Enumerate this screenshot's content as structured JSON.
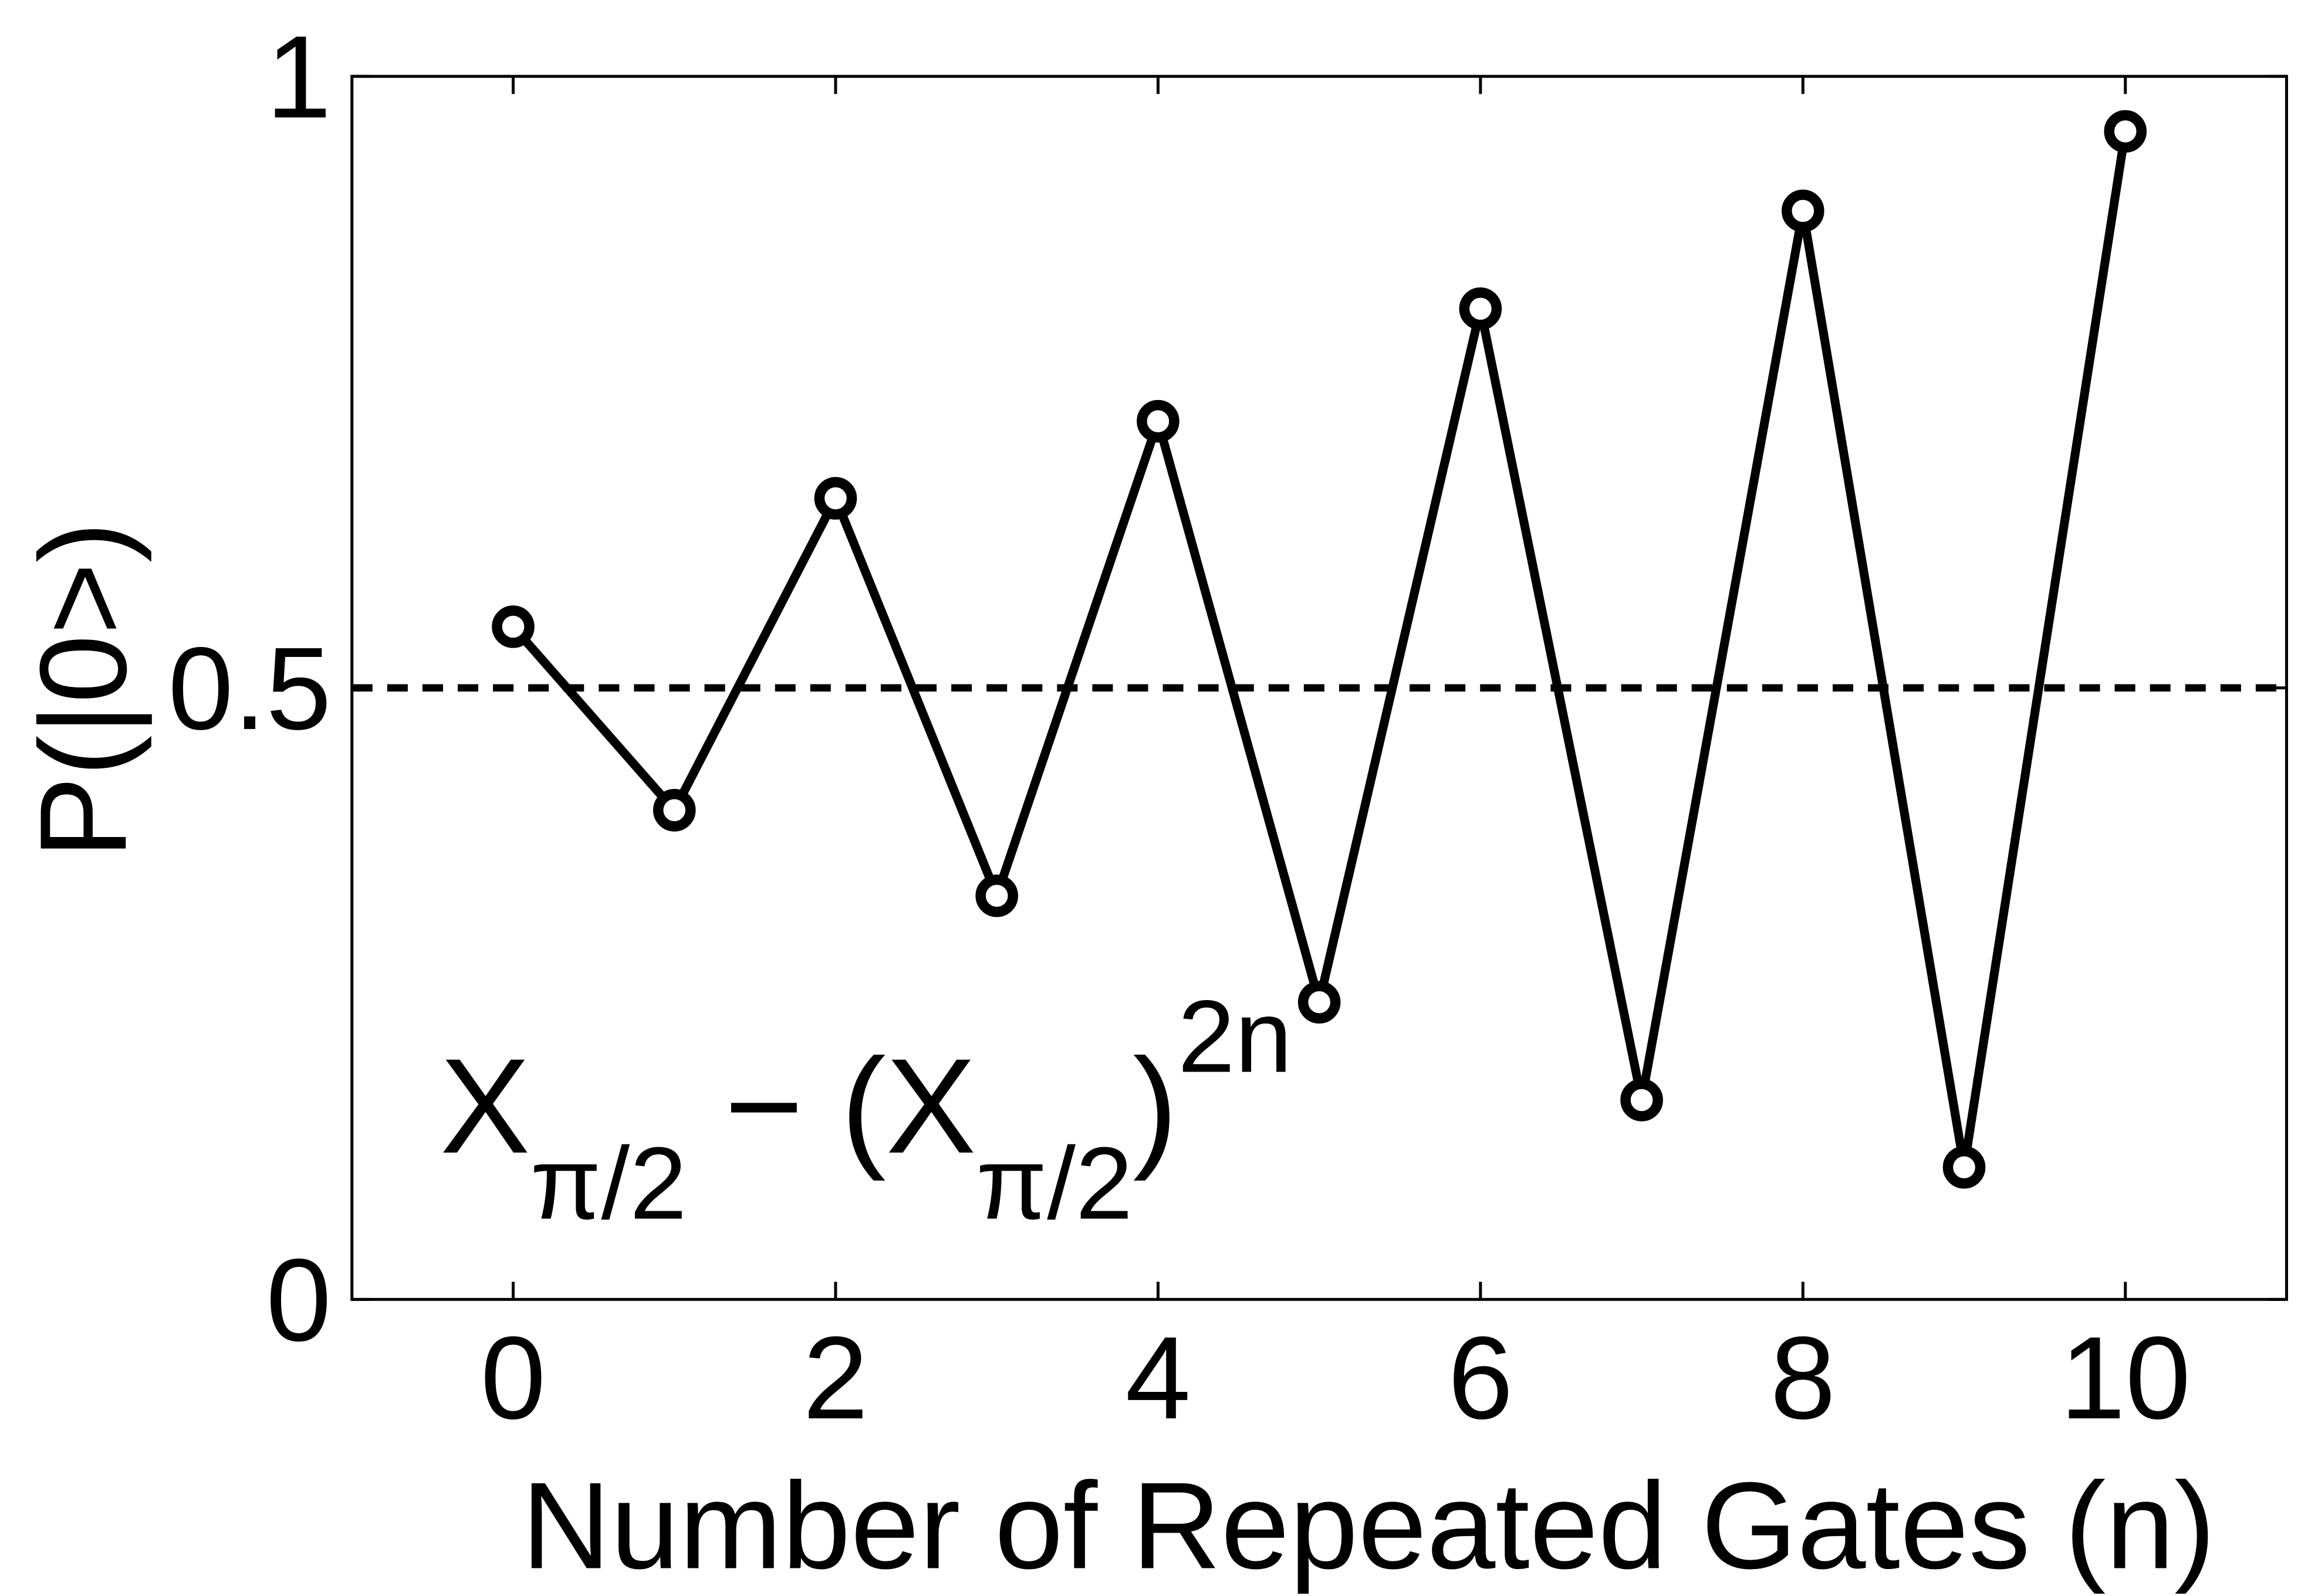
{
  "chart_data": {
    "type": "line",
    "x_label": "Number of Repeated Gates (n)",
    "y_label": "P(|0>)",
    "annotation": [
      "X",
      "π/2",
      " − (X",
      "π/2",
      ")",
      "2n"
    ],
    "x": [
      0,
      1,
      2,
      3,
      4,
      5,
      6,
      7,
      8,
      9,
      10
    ],
    "series": [
      {
        "color": "#000000",
        "values": [
          0.55,
          0.4,
          0.655,
          0.33,
          0.718,
          0.243,
          0.81,
          0.163,
          0.89,
          0.108,
          0.955
        ]
      }
    ],
    "reference_line": 0.5,
    "xlim": [
      -1,
      11
    ],
    "ylim": [
      0,
      1
    ],
    "xticks": [
      0,
      2,
      4,
      6,
      8,
      10
    ],
    "yticks": [
      0,
      0.5,
      1
    ]
  }
}
